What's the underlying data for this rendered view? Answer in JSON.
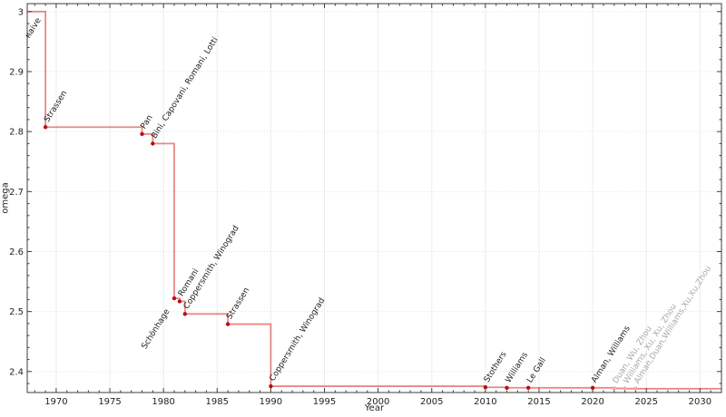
{
  "chart_data": {
    "type": "line",
    "subtype": "step-post",
    "title": "",
    "xlabel": "Year",
    "ylabel": "omega",
    "xlim": [
      1967.3,
      2032.0
    ],
    "ylim": [
      2.365,
      3.0133
    ],
    "x_major_ticks": [
      1970,
      1975,
      1980,
      1985,
      1990,
      1995,
      2000,
      2005,
      2010,
      2015,
      2020,
      2025,
      2030
    ],
    "x_tick_labels": [
      "1970",
      "1975",
      "1980",
      "1985",
      "1990",
      "1995",
      "2000",
      "2005",
      "2010",
      "2015",
      "2020",
      "2025",
      "2030"
    ],
    "y_major_ticks": [
      2.4,
      2.5,
      2.6,
      2.7,
      2.8,
      2.9,
      3.0
    ],
    "y_tick_labels": [
      "2.4",
      "2.5",
      "2.6",
      "2.7",
      "2.8",
      "2.9",
      "3"
    ],
    "x_minor_step": 1,
    "y_minor_step": 0.02,
    "grid": true,
    "legend": "none",
    "annotation_rotation_deg": -58,
    "colors": {
      "line": "#d62728",
      "marker": "#b90d12",
      "marker_provisional": "#f2a6a6",
      "label": "#1c1c1c",
      "label_provisional": "#a8a8a8",
      "grid": "#ececec",
      "axis": "#3c3c3c"
    },
    "series": [
      {
        "name": "omega upper bound over time",
        "points": [
          {
            "year": 1969,
            "omega": 3,
            "label": "naive",
            "marker": false,
            "label_dx": -18,
            "label_dy": 30
          },
          {
            "year": 1969,
            "omega": 2.8074,
            "label": "Strassen"
          },
          {
            "year": 1978,
            "omega": 2.796,
            "label": "Pan"
          },
          {
            "year": 1979,
            "omega": 2.78,
            "label": "Bini, Capovani, Romani, Lotti"
          },
          {
            "year": 1981,
            "omega": 2.522,
            "label": "Schönhage",
            "label_anchor": "end",
            "label_dx": -5,
            "label_dy": 14
          },
          {
            "year": 1981.5,
            "omega": 2.517,
            "label": "Romani"
          },
          {
            "year": 1982,
            "omega": 2.496,
            "label": "Coppersmith, Winograd"
          },
          {
            "year": 1986,
            "omega": 2.479,
            "label": "Strassen"
          },
          {
            "year": 1990,
            "omega": 2.3755,
            "label": "Coppersmith, Winograd"
          },
          {
            "year": 2010,
            "omega": 2.3737,
            "label": "Stothers"
          },
          {
            "year": 2012,
            "omega": 2.3729,
            "label": "Williams"
          },
          {
            "year": 2014,
            "omega": 2.3728639,
            "label": "Le Gall"
          },
          {
            "year": 2020,
            "omega": 2.3728596,
            "label": "Alman, Williams"
          },
          {
            "year": 2022,
            "omega": 2.371866,
            "label": "Duan, Wu, Zhou",
            "provisional": true
          },
          {
            "year": 2023,
            "omega": 2.371552,
            "label": "Williams, Xu, Xu, Zhou",
            "provisional": true
          },
          {
            "year": 2024,
            "omega": 2.371339,
            "label": "Alman,Duan,Williams,Xu,Xu,Zhou",
            "provisional": true
          }
        ]
      }
    ]
  }
}
